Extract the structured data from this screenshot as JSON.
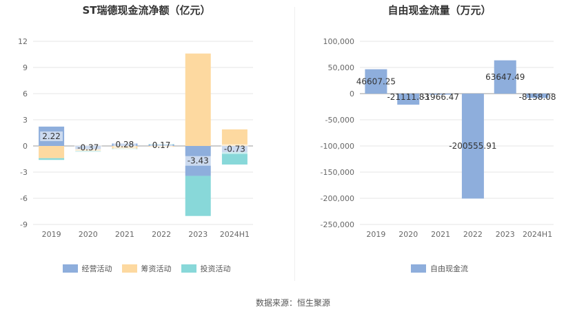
{
  "source_label": "数据来源：恒生聚源",
  "colors": {
    "operating": "#8eaedc",
    "financing": "#fdd9a0",
    "investing": "#88d8d9",
    "fcf": "#8eaedc",
    "grid": "#e6e6e6",
    "axis": "#999999"
  },
  "chart_data": [
    {
      "type": "bar",
      "stacked": true,
      "title": "ST瑞德现金流净额（亿元）",
      "categories": [
        "2019",
        "2020",
        "2021",
        "2022",
        "2023",
        "2024H1"
      ],
      "ylim": [
        -9,
        12
      ],
      "yticks": [
        -9,
        -6,
        -3,
        0,
        3,
        6,
        9,
        12
      ],
      "series": [
        {
          "name": "经营活动",
          "values": [
            2.22,
            -0.37,
            0.28,
            0.17,
            -3.43,
            -0.73
          ],
          "labels": [
            "2.22",
            "-0.37",
            "0.28",
            "0.17",
            "-3.43",
            "-0.73"
          ]
        },
        {
          "name": "筹资活动",
          "values": [
            -1.4,
            -0.2,
            -0.3,
            -0.1,
            10.6,
            1.9
          ]
        },
        {
          "name": "投资活动",
          "values": [
            -0.2,
            -0.1,
            -0.05,
            0.05,
            -4.6,
            -1.4
          ]
        }
      ],
      "legend_position": "bottom"
    },
    {
      "type": "bar",
      "title": "自由现金流量（万元）",
      "categories": [
        "2019",
        "2020",
        "2021",
        "2022",
        "2023",
        "2024H1"
      ],
      "ylim": [
        -250000,
        100000
      ],
      "yticks": [
        "100,000",
        "50,000",
        "0",
        "-50,000",
        "-100,000",
        "-150,000",
        "-200,000",
        "-250,000"
      ],
      "series": [
        {
          "name": "自由现金流",
          "values": [
            46607.25,
            -21111.83,
            -1966.47,
            -200555.91,
            63647.49,
            -8158.08
          ],
          "labels": [
            "46607.25",
            "-21111.83",
            "-1966.47",
            "-200555.91",
            "63647.49",
            "-8158.08"
          ]
        }
      ],
      "legend_position": "bottom"
    }
  ]
}
